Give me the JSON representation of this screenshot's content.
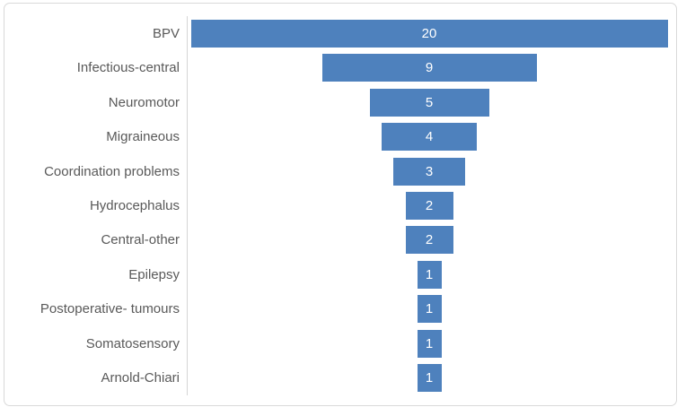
{
  "chart_data": {
    "type": "bar",
    "variant": "funnel-centered-horizontal",
    "categories": [
      "BPV",
      "Infectious-central",
      "Neuromotor",
      "Migraineous",
      "Coordination problems",
      "Hydrocephalus",
      "Central-other",
      "Epilepsy",
      "Postoperative- tumours",
      "Somatosensory",
      "Arnold-Chiari"
    ],
    "values": [
      20,
      9,
      5,
      4,
      3,
      2,
      2,
      1,
      1,
      1,
      1
    ],
    "value_labels_visible": true,
    "xlim": [
      0,
      20
    ],
    "grid": false,
    "legend": false
  },
  "colors": {
    "bar_fill": "#4E81BD",
    "value_label": "#FFFFFF",
    "category_label": "#595959",
    "axis_line": "#D6D6D6",
    "chart_border": "#D9D9D9",
    "background": "#FFFFFF"
  }
}
